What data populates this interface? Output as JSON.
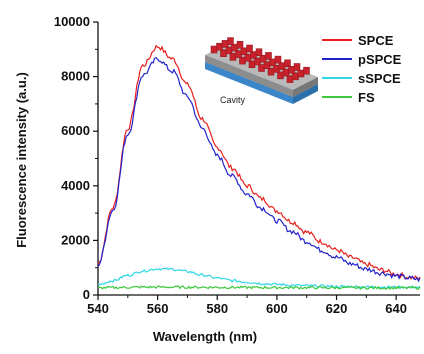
{
  "chart_data": {
    "type": "line",
    "xlabel": "Wavelength (nm)",
    "ylabel": "Fluorescence intensity (a.u.)",
    "xlim": [
      540,
      648
    ],
    "ylim": [
      0,
      10000
    ],
    "x_ticks": [
      "540",
      "560",
      "580",
      "600",
      "620",
      "640"
    ],
    "y_ticks": [
      "0",
      "2000",
      "4000",
      "6000",
      "8000",
      "10000"
    ],
    "legend_position": "top-right",
    "inset": {
      "label": "Cavity"
    },
    "x": [
      540,
      545,
      550,
      555,
      560,
      565,
      570,
      575,
      580,
      585,
      590,
      595,
      600,
      605,
      610,
      615,
      620,
      625,
      630,
      635,
      640,
      645,
      648
    ],
    "series": [
      {
        "name": "SPCE",
        "color": "#e8201f",
        "values": [
          1150,
          3200,
          6100,
          8400,
          9100,
          8650,
          7700,
          6450,
          5400,
          4650,
          4000,
          3520,
          3080,
          2680,
          2300,
          1950,
          1650,
          1370,
          1120,
          920,
          760,
          640,
          600
        ]
      },
      {
        "name": "pSPCE",
        "color": "#2222cc",
        "values": [
          1100,
          3100,
          5900,
          8050,
          8650,
          8200,
          7250,
          6100,
          5100,
          4350,
          3700,
          3180,
          2720,
          2330,
          1960,
          1640,
          1380,
          1140,
          950,
          810,
          700,
          610,
          570
        ]
      },
      {
        "name": "sSPCE",
        "color": "#2fd6e6",
        "values": [
          380,
          520,
          720,
          880,
          960,
          940,
          860,
          730,
          620,
          530,
          470,
          420,
          390,
          360,
          340,
          330,
          315,
          305,
          300,
          295,
          290,
          290,
          290
        ]
      },
      {
        "name": "FS",
        "color": "#3cc73c",
        "values": [
          260,
          270,
          280,
          290,
          290,
          290,
          285,
          285,
          280,
          280,
          275,
          275,
          270,
          270,
          270,
          265,
          265,
          265,
          260,
          260,
          260,
          260,
          260
        ]
      }
    ]
  }
}
